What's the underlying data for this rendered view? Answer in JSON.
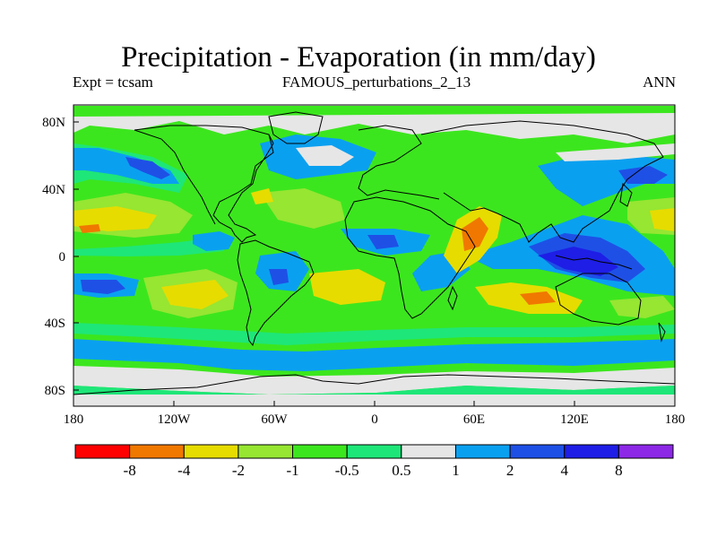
{
  "header": {
    "title": "Precipitation - Evaporation (in mm/day)",
    "expt": "Expt = tcsam",
    "run": "FAMOUS_perturbations_2_13",
    "period": "ANN"
  },
  "map": {
    "lat_ticks": [
      "80N",
      "40N",
      "0",
      "40S",
      "80S"
    ],
    "lon_ticks": [
      "180",
      "120W",
      "60W",
      "0",
      "60E",
      "120E",
      "180"
    ]
  },
  "colorbar": {
    "colors": [
      "#ff0000",
      "#f07800",
      "#e6dc00",
      "#96e632",
      "#3ce61e",
      "#1ee678",
      "#e6e6e6",
      "#0aa0f0",
      "#1e50e6",
      "#1e1ee6",
      "#8c28e6"
    ],
    "labels": [
      "-8",
      "-4",
      "-2",
      "-1",
      "-0.5",
      "0.5",
      "1",
      "2",
      "4",
      "8"
    ]
  },
  "palette": {
    "green": "#3ce61e",
    "teal": "#1ee678",
    "yellowgreen": "#96e632",
    "yellow": "#e6dc00",
    "orange": "#f07800",
    "grey": "#e6e6e6",
    "lightblue": "#0aa0f0",
    "blue": "#1e50e6",
    "darkblue": "#1e1ee6"
  }
}
